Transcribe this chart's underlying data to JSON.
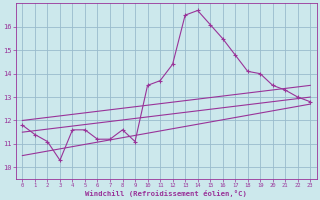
{
  "title": "",
  "xlabel": "Windchill (Refroidissement éolien,°C)",
  "ylabel": "",
  "bg_color": "#cce8ec",
  "line_color": "#993399",
  "grid_color": "#99bbcc",
  "xlim": [
    -0.5,
    23.5
  ],
  "ylim": [
    9.5,
    17.0
  ],
  "xticks": [
    0,
    1,
    2,
    3,
    4,
    5,
    6,
    7,
    8,
    9,
    10,
    11,
    12,
    13,
    14,
    15,
    16,
    17,
    18,
    19,
    20,
    21,
    22,
    23
  ],
  "yticks": [
    10,
    11,
    12,
    13,
    14,
    15,
    16
  ],
  "main_line": {
    "x": [
      0,
      1,
      2,
      3,
      4,
      5,
      6,
      7,
      8,
      9,
      10,
      11,
      12,
      13,
      14,
      15,
      16,
      17,
      18,
      19,
      20,
      21,
      22,
      23
    ],
    "y": [
      11.8,
      11.4,
      11.1,
      10.3,
      11.6,
      11.6,
      11.2,
      11.2,
      11.6,
      11.1,
      13.5,
      13.7,
      14.4,
      16.5,
      16.7,
      16.1,
      15.5,
      14.8,
      14.1,
      14.0,
      13.5,
      13.3,
      13.0,
      12.8
    ]
  },
  "diag_lines": [
    {
      "x": [
        0,
        23
      ],
      "y": [
        10.5,
        12.7
      ]
    },
    {
      "x": [
        0,
        23
      ],
      "y": [
        11.5,
        13.0
      ]
    },
    {
      "x": [
        0,
        23
      ],
      "y": [
        12.0,
        13.5
      ]
    }
  ]
}
